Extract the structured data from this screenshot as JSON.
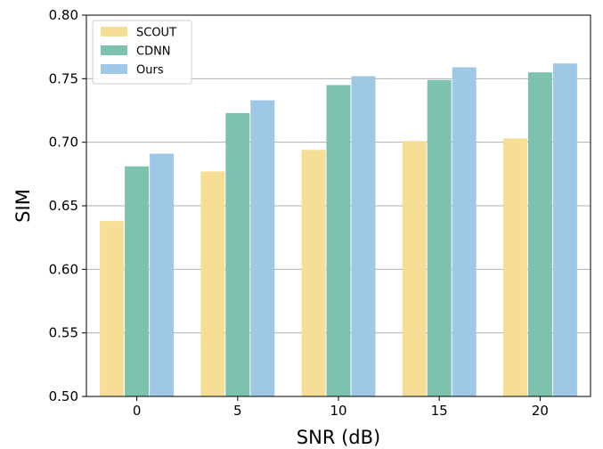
{
  "chart_data": {
    "type": "bar",
    "categories": [
      "0",
      "5",
      "10",
      "15",
      "20"
    ],
    "series": [
      {
        "name": "SCOUT",
        "color": "#f7de97",
        "values": [
          0.638,
          0.677,
          0.694,
          0.701,
          0.703
        ]
      },
      {
        "name": "CDNN",
        "color": "#7dc2af",
        "values": [
          0.681,
          0.723,
          0.745,
          0.749,
          0.755
        ]
      },
      {
        "name": "Ours",
        "color": "#9fc8e6",
        "values": [
          0.691,
          0.733,
          0.752,
          0.759,
          0.762
        ]
      }
    ],
    "xlabel": "SNR (dB)",
    "ylabel": "SIM",
    "ylim": [
      0.5,
      0.8
    ],
    "yticks": [
      "0.50",
      "0.55",
      "0.60",
      "0.65",
      "0.70",
      "0.75",
      "0.80"
    ],
    "grid": "horizontal",
    "legend_position": "top-left"
  }
}
